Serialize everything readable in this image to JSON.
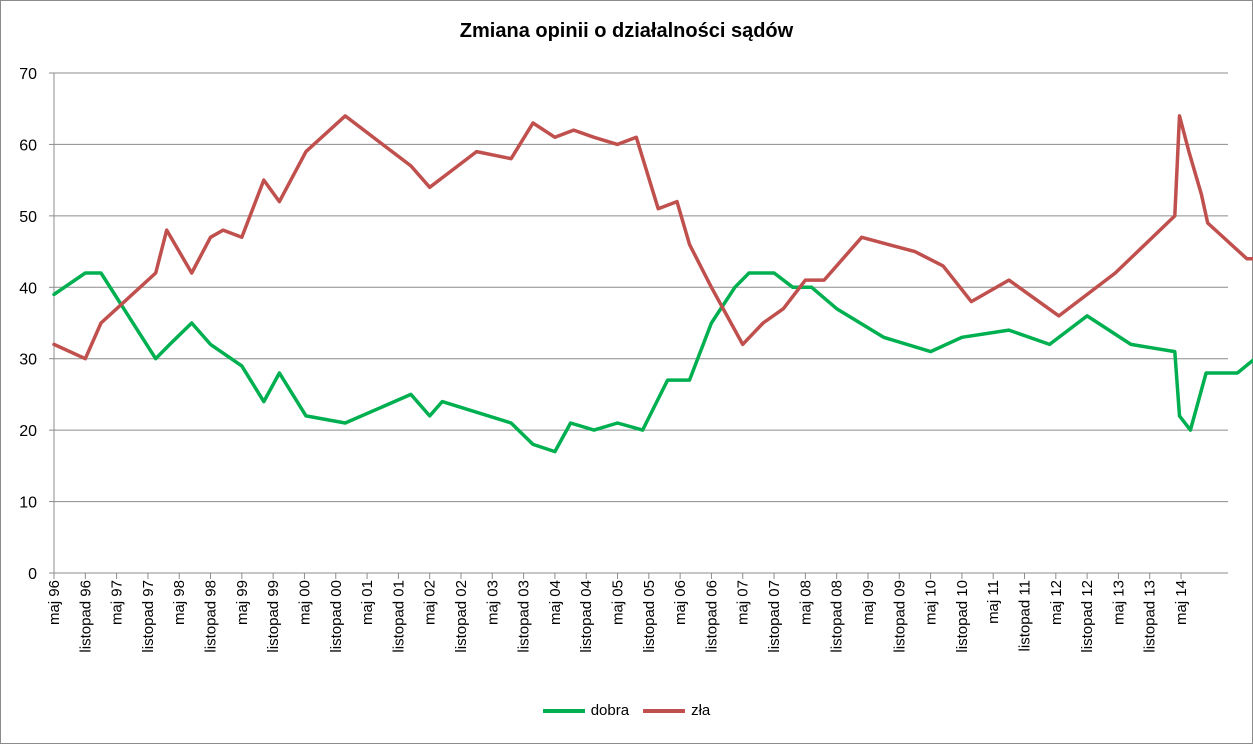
{
  "chart_data": {
    "type": "line",
    "title": "Zmiana opinii o działalności sądów",
    "xlabel": "",
    "ylabel": "",
    "ylim": [
      0,
      70
    ],
    "yticks": [
      0,
      10,
      20,
      30,
      40,
      50,
      60,
      70
    ],
    "grid": true,
    "legend_position": "bottom",
    "categories": [
      "maj 96",
      "listopad 96",
      "maj 97",
      "listopad 97",
      "maj 98",
      "listopad 98",
      "maj 99",
      "listopad 99",
      "maj 00",
      "listopad 00",
      "maj 01",
      "listopad 01",
      "maj 02",
      "listopad 02",
      "maj 03",
      "listopad 03",
      "maj 04",
      "listopad 04",
      "maj 05",
      "listopad 05",
      "maj 06",
      "listopad 06",
      "maj 07",
      "listopad 07",
      "maj 08",
      "listopad 08",
      "maj 09",
      "listopad 09",
      "maj 10",
      "listopad 10",
      "maj 11",
      "listopad 11",
      "maj 12",
      "listopad 12",
      "maj 13",
      "listopad 13",
      "maj 14"
    ],
    "series": [
      {
        "name": "dobra",
        "color": "#00b050",
        "points": [
          [
            0,
            39
          ],
          [
            1,
            42
          ],
          [
            1.5,
            42
          ],
          [
            3.25,
            30
          ],
          [
            3.7,
            32
          ],
          [
            4.4,
            35
          ],
          [
            5,
            32
          ],
          [
            6,
            29
          ],
          [
            6.7,
            24
          ],
          [
            7.2,
            28
          ],
          [
            8.05,
            22
          ],
          [
            9.3,
            21
          ],
          [
            11.4,
            25
          ],
          [
            12,
            22
          ],
          [
            12.4,
            24
          ],
          [
            14.6,
            21
          ],
          [
            15.3,
            18
          ],
          [
            16,
            17
          ],
          [
            16.5,
            21
          ],
          [
            17.25,
            20
          ],
          [
            18,
            21
          ],
          [
            18.8,
            20
          ],
          [
            19.6,
            27
          ],
          [
            20.3,
            27
          ],
          [
            21,
            35
          ],
          [
            21.75,
            40
          ],
          [
            22.2,
            42
          ],
          [
            23,
            42
          ],
          [
            23.6,
            40
          ],
          [
            24.2,
            40
          ],
          [
            25,
            37
          ],
          [
            26.5,
            33
          ],
          [
            28,
            31
          ],
          [
            29,
            33
          ],
          [
            30.5,
            34
          ],
          [
            31.8,
            32
          ],
          [
            33,
            36
          ],
          [
            34.4,
            32
          ],
          [
            35.8,
            31
          ],
          [
            35.95,
            22
          ],
          [
            36.3,
            20
          ],
          [
            36.8,
            28
          ],
          [
            37.8,
            28
          ],
          [
            39.2,
            33
          ],
          [
            39.8,
            28
          ],
          [
            40.2,
            29
          ]
        ]
      },
      {
        "name": "zła",
        "color": "#c0504d",
        "points": [
          [
            0,
            32
          ],
          [
            1,
            30
          ],
          [
            1.5,
            35
          ],
          [
            3.25,
            42
          ],
          [
            3.6,
            48
          ],
          [
            4.4,
            42
          ],
          [
            5,
            47
          ],
          [
            5.4,
            48
          ],
          [
            6,
            47
          ],
          [
            6.7,
            55
          ],
          [
            7.2,
            52
          ],
          [
            8.05,
            59
          ],
          [
            9.3,
            64
          ],
          [
            11.4,
            57
          ],
          [
            12,
            54
          ],
          [
            12.6,
            56
          ],
          [
            13.5,
            59
          ],
          [
            14.6,
            58
          ],
          [
            15.3,
            63
          ],
          [
            16,
            61
          ],
          [
            16.6,
            62
          ],
          [
            17.25,
            61
          ],
          [
            18,
            60
          ],
          [
            18.6,
            61
          ],
          [
            19.3,
            51
          ],
          [
            19.9,
            52
          ],
          [
            20.3,
            46
          ],
          [
            21,
            40
          ],
          [
            22,
            32
          ],
          [
            22.65,
            35
          ],
          [
            23.3,
            37
          ],
          [
            24,
            41
          ],
          [
            24.6,
            41
          ],
          [
            25.8,
            47
          ],
          [
            27.5,
            45
          ],
          [
            28.4,
            43
          ],
          [
            29.3,
            38
          ],
          [
            30.5,
            41
          ],
          [
            32.1,
            36
          ],
          [
            33.9,
            42
          ],
          [
            35.8,
            50
          ],
          [
            35.95,
            64
          ],
          [
            36.25,
            59
          ],
          [
            36.65,
            53
          ],
          [
            36.85,
            49
          ],
          [
            38.1,
            44
          ],
          [
            39.2,
            44
          ],
          [
            39.8,
            42
          ],
          [
            40.2,
            50
          ]
        ]
      }
    ]
  }
}
